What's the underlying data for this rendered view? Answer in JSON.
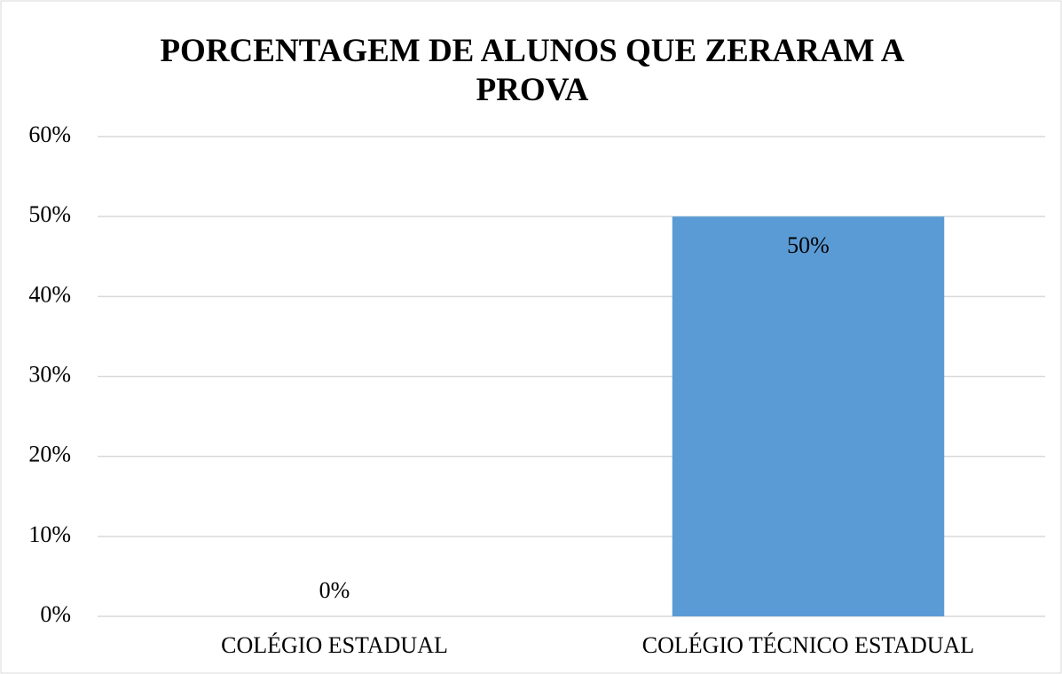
{
  "chart_data": {
    "type": "bar",
    "title": "PORCENTAGEM DE ALUNOS QUE ZERARAM A PROVA",
    "categories": [
      "COLÉGIO ESTADUAL",
      "COLÉGIO TÉCNICO ESTADUAL"
    ],
    "values": [
      0,
      50
    ],
    "value_labels": [
      "0%",
      "50%"
    ],
    "color": "#5b9bd5",
    "ylim": [
      0,
      60
    ],
    "yticks": [
      {
        "value": 0,
        "label": "0%"
      },
      {
        "value": 10,
        "label": "10%"
      },
      {
        "value": 20,
        "label": "20%"
      },
      {
        "value": 30,
        "label": "30%"
      },
      {
        "value": 40,
        "label": "40%"
      },
      {
        "value": 50,
        "label": "50%"
      },
      {
        "value": 60,
        "label": "60%"
      }
    ],
    "grid": true
  }
}
